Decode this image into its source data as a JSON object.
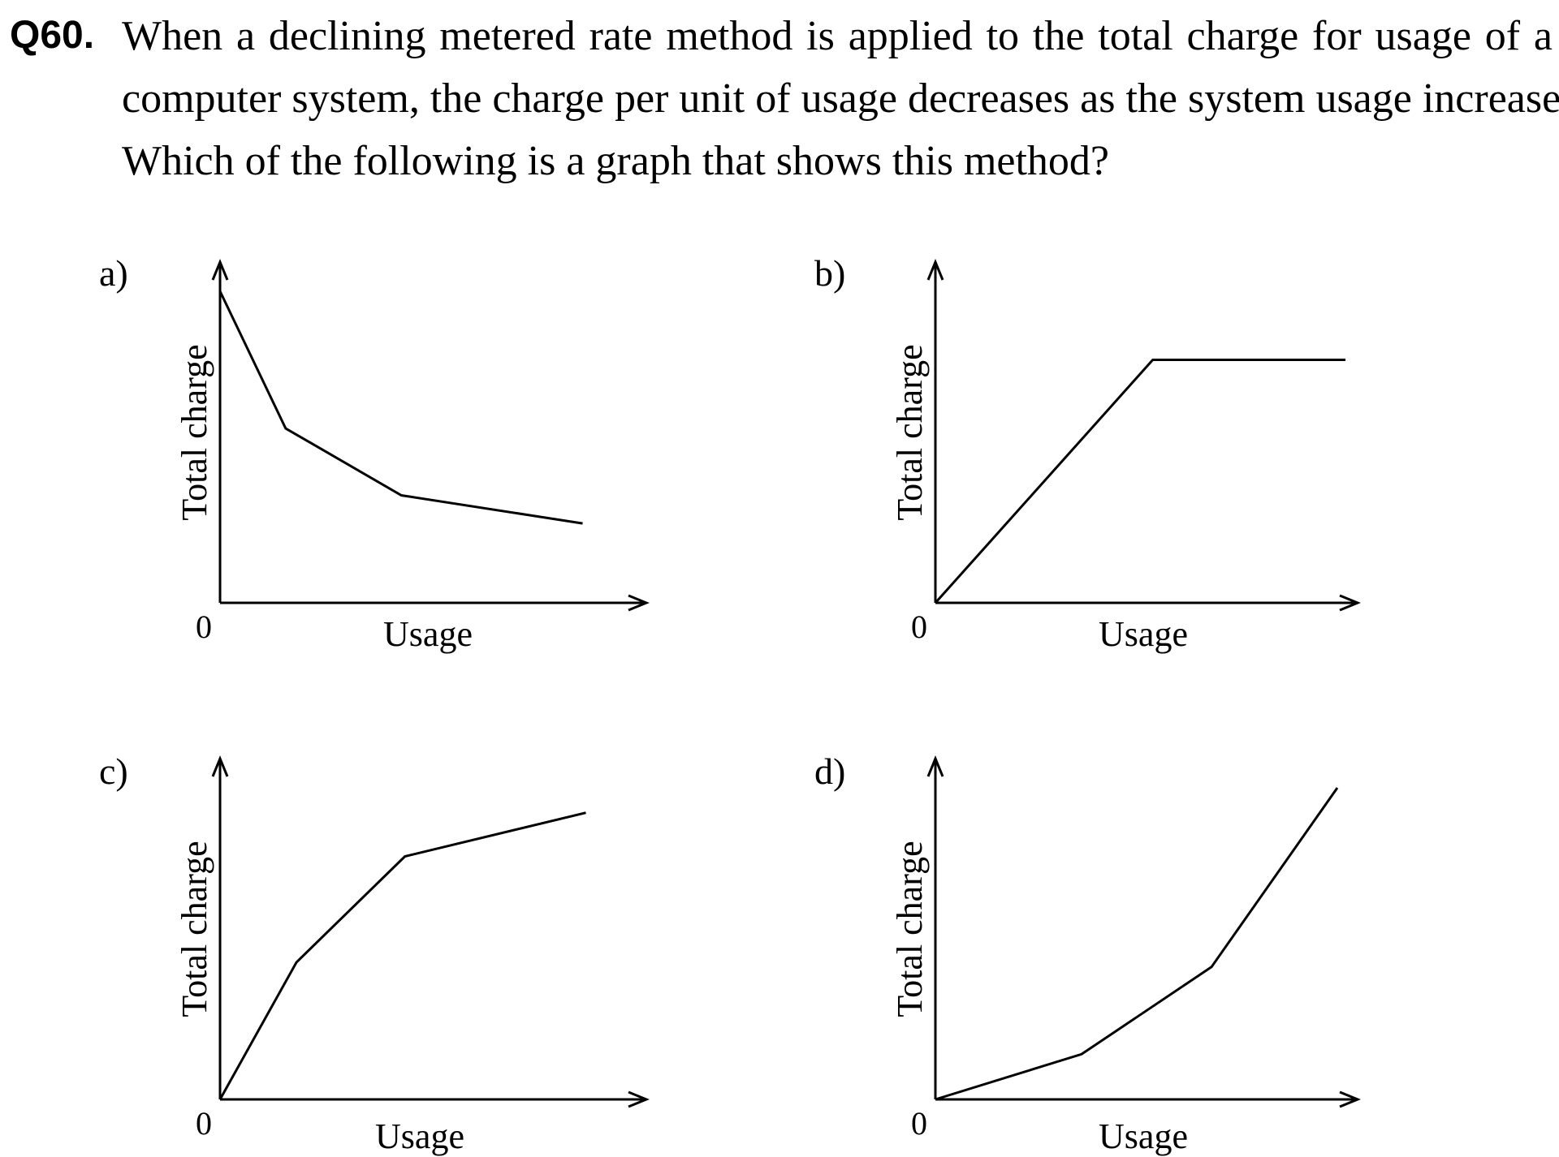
{
  "question": {
    "number": "Q60.",
    "lines": [
      "When a declining metered rate method is applied to the total charge for usage of a",
      "computer system, the charge per unit of usage decreases as the system usage increases.",
      "Which of the following is a graph that shows this method?"
    ]
  },
  "chart_data": [
    {
      "type": "line",
      "option_label": "a)",
      "xlabel": "Usage",
      "ylabel": "Total charge",
      "origin_label": "0",
      "xlim": [
        0,
        1
      ],
      "ylim": [
        0,
        1
      ],
      "x": [
        0,
        0.17,
        0.47,
        0.94
      ],
      "y": [
        1.0,
        0.56,
        0.345,
        0.255
      ]
    },
    {
      "type": "line",
      "option_label": "b)",
      "xlabel": "Usage",
      "ylabel": "Total charge",
      "origin_label": "0",
      "xlim": [
        0,
        1
      ],
      "ylim": [
        0,
        1
      ],
      "x": [
        0,
        0.53,
        1.0
      ],
      "y": [
        0,
        0.78,
        0.78
      ]
    },
    {
      "type": "line",
      "option_label": "c)",
      "xlabel": "Usage",
      "ylabel": "Total charge",
      "origin_label": "0",
      "xlim": [
        0,
        1
      ],
      "ylim": [
        0,
        1
      ],
      "x": [
        0,
        0.19,
        0.46,
        0.91
      ],
      "y": [
        0,
        0.44,
        0.78,
        0.92
      ]
    },
    {
      "type": "line",
      "option_label": "d)",
      "xlabel": "Usage",
      "ylabel": "Total charge",
      "origin_label": "0",
      "xlim": [
        0,
        1
      ],
      "ylim": [
        0,
        1
      ],
      "x": [
        0,
        0.36,
        0.68,
        0.99
      ],
      "y": [
        0,
        0.145,
        0.425,
        1.0
      ]
    }
  ]
}
